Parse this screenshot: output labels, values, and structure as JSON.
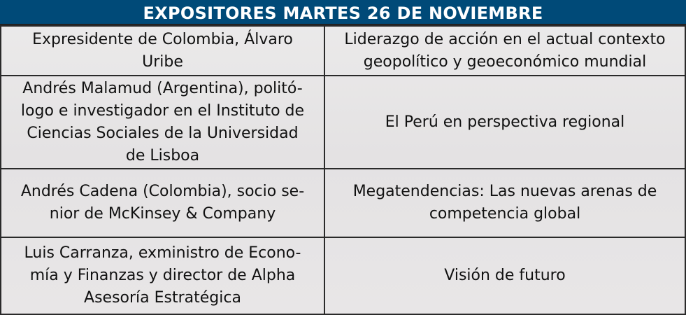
{
  "title": "EXPOSITORES MARTES 26 DE NOVIEMBRE",
  "colors": {
    "header_bg": "#004a78",
    "header_text": "#ffffff"
  },
  "rows": [
    {
      "speaker": [
        "Expresidente de Colombia, Álvaro",
        "Uribe"
      ],
      "topic": [
        "Liderazgo de acción en el actual contexto",
        "geopolítico y geoeconómico mundial"
      ]
    },
    {
      "speaker": [
        "Andrés Malamud (Argentina), politó-",
        "logo e investigador en el Instituto de",
        "Ciencias Sociales de la Universidad",
        "de Lisboa"
      ],
      "topic": [
        "El Perú en perspectiva regional"
      ]
    },
    {
      "speaker": [
        "Andrés Cadena (Colombia), socio se-",
        "nior de McKinsey & Company"
      ],
      "topic": [
        "Megatendencias: Las nuevas arenas de",
        "competencia global"
      ]
    },
    {
      "speaker": [
        "Luis Carranza, exministro de Econo-",
        "mía y Finanzas y director de Alpha",
        "Asesoría Estratégica"
      ],
      "topic": [
        "Visión de futuro"
      ]
    }
  ]
}
